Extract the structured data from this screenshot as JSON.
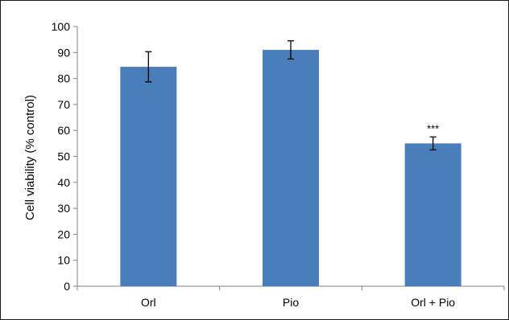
{
  "chart_data": {
    "type": "bar",
    "categories": [
      "Orl",
      "Pio",
      "Orl + Pio"
    ],
    "values": [
      84.5,
      91,
      55
    ],
    "error_bars": [
      5.8,
      3.5,
      2.5
    ],
    "annotations": [
      "",
      "",
      "***"
    ],
    "title": "",
    "xlabel": "",
    "ylabel": "Cell viability (% control)",
    "ylim": [
      0,
      100
    ],
    "yticks": [
      0,
      10,
      20,
      30,
      40,
      50,
      60,
      70,
      80,
      90,
      100
    ],
    "grid": false,
    "legend": "none",
    "colors": {
      "bar": "#4a7ebb",
      "axis": "#808080",
      "error": "#000000"
    }
  }
}
